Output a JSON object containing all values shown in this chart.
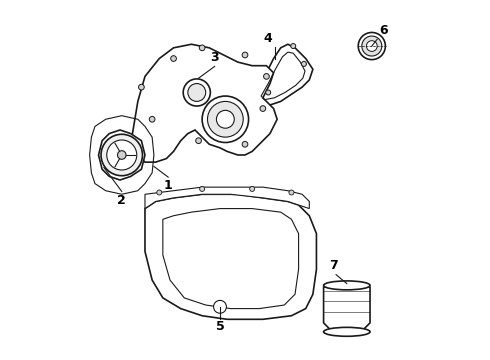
{
  "background_color": "#ffffff",
  "line_color": "#1a1a1a",
  "label_color": "#000000",
  "fig_width": 4.9,
  "fig_height": 3.6,
  "dpi": 100
}
